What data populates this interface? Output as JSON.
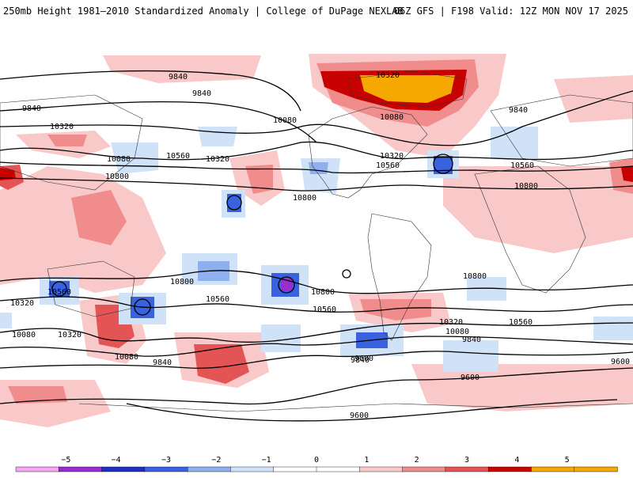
{
  "header": {
    "title": "250mb Height 1981–2010 Standardized Anomaly | College of DuPage NEXLAB",
    "run_info": "06Z GFS | F198 Valid: 12Z MON NOV 17 2025"
  },
  "map": {
    "contour_labels": [
      "9840",
      "9840",
      "9840",
      "10320",
      "10080",
      "10800",
      "10560",
      "10320",
      "10080",
      "10320",
      "10080",
      "10320",
      "10560",
      "10800",
      "9840",
      "10560",
      "10800",
      "10800",
      "10560",
      "10800",
      "10560",
      "10320",
      "10080",
      "9840",
      "10320",
      "10080",
      "9840",
      "10800",
      "10560",
      "10320",
      "10080",
      "9840",
      "10560",
      "9600",
      "9600",
      "9600",
      "9600"
    ],
    "anomaly_colors": {
      "pos1": "#f9c9c9",
      "pos2": "#f08c8c",
      "pos3": "#e35555",
      "pos4": "#c80000",
      "pos5": "#f5a800",
      "neg1": "#cfe2f7",
      "neg2": "#8fb0f0",
      "neg3": "#3a62df",
      "neg4": "#1f2fbd",
      "neg5": "#9a2cd0"
    }
  },
  "colorbar": {
    "ticks": [
      "−5",
      "−4",
      "−3",
      "−2",
      "−1",
      "0",
      "1",
      "2",
      "3",
      "4",
      "5"
    ],
    "colors": [
      "#f3a6f3",
      "#9a2cd0",
      "#1f2fbd",
      "#3a62df",
      "#8fb0f0",
      "#cfe2f7",
      "#ffffff",
      "#ffffff",
      "#f9c9c9",
      "#f08c8c",
      "#e35555",
      "#c80000",
      "#f5a800",
      "#f5a800"
    ]
  }
}
